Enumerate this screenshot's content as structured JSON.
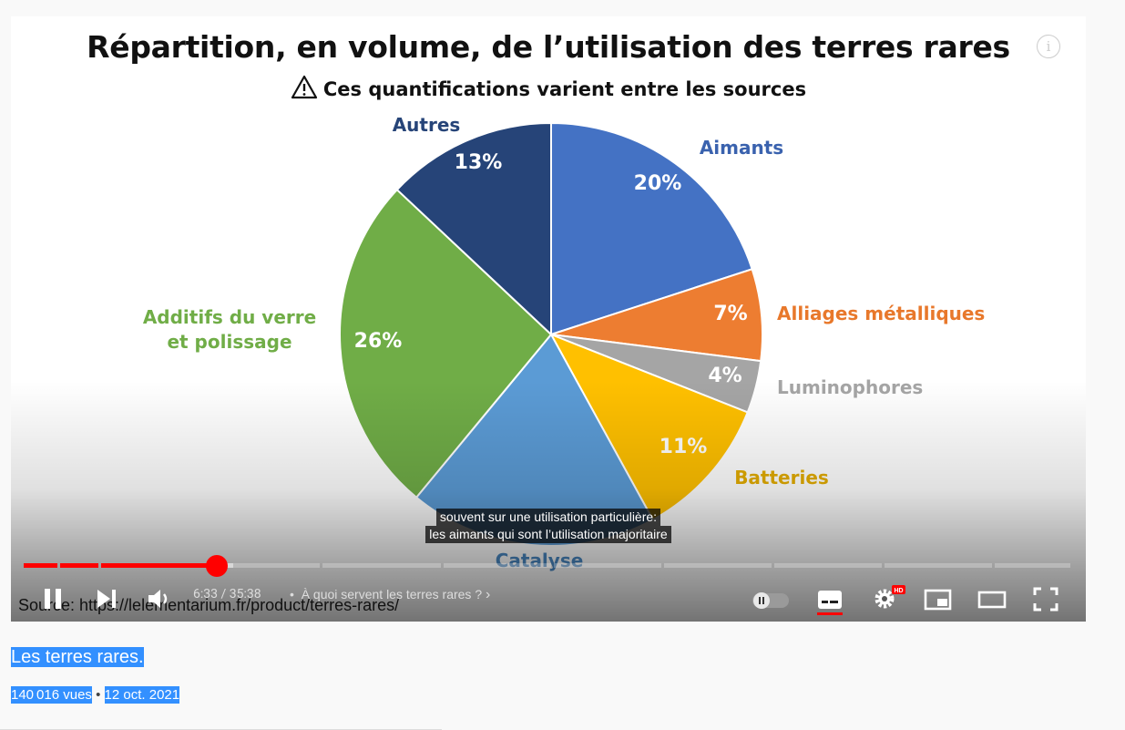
{
  "chart": {
    "title": "Répartition, en volume, de l’utilisation des terres rares",
    "subtitle": "Ces quantifications varient entre les sources"
  },
  "chart_data": {
    "type": "pie",
    "title": "Répartition, en volume, de l’utilisation des terres rares",
    "subtitle": "Ces quantifications varient entre les sources",
    "slices": [
      {
        "name": "Aimants",
        "value": 20,
        "label": "20%",
        "color": "#4472c4",
        "label_color": "#3a62ae"
      },
      {
        "name": "Alliages métalliques",
        "value": 7,
        "label": "7%",
        "color": "#ed7d31",
        "label_color": "#e8782b"
      },
      {
        "name": "Luminophores",
        "value": 4,
        "label": "4%",
        "color": "#a5a5a5",
        "label_color": "#a5a5a5"
      },
      {
        "name": "Batteries",
        "value": 11,
        "label": "11%",
        "color": "#ffc000",
        "label_color": "#e3ac00"
      },
      {
        "name": "Catalyse",
        "value": 19,
        "label": "",
        "color": "#5b9bd5",
        "label_color": "#4a89c4"
      },
      {
        "name": "Additifs du verre et polissage",
        "value": 26,
        "label": "26%",
        "color": "#70ad47",
        "label_color": "#70ad47"
      },
      {
        "name": "Autres",
        "value": 13,
        "label": "13%",
        "color": "#264478",
        "label_color": "#264478"
      }
    ]
  },
  "captions": {
    "line1": "souvent sur une utilisation particulière:",
    "line2": "les aimants qui sont l’utilisation majoritaire"
  },
  "player": {
    "progress_played": 0.184,
    "progress_buffered": 0.2,
    "time_display": "6:33 / 35:38",
    "chapter": "À quoi servent les terres rares ?",
    "hd_badge": "HD",
    "info_icon": "i"
  },
  "source_text": "Source: https://lelementarium.fr/product/terres-rares/",
  "video": {
    "title": "Les terres rares.",
    "views": "140 016 vues",
    "separator": "•",
    "date": "12 oct. 2021"
  },
  "colors": {
    "progress": "#ff0000",
    "selection": "#3390ff"
  }
}
